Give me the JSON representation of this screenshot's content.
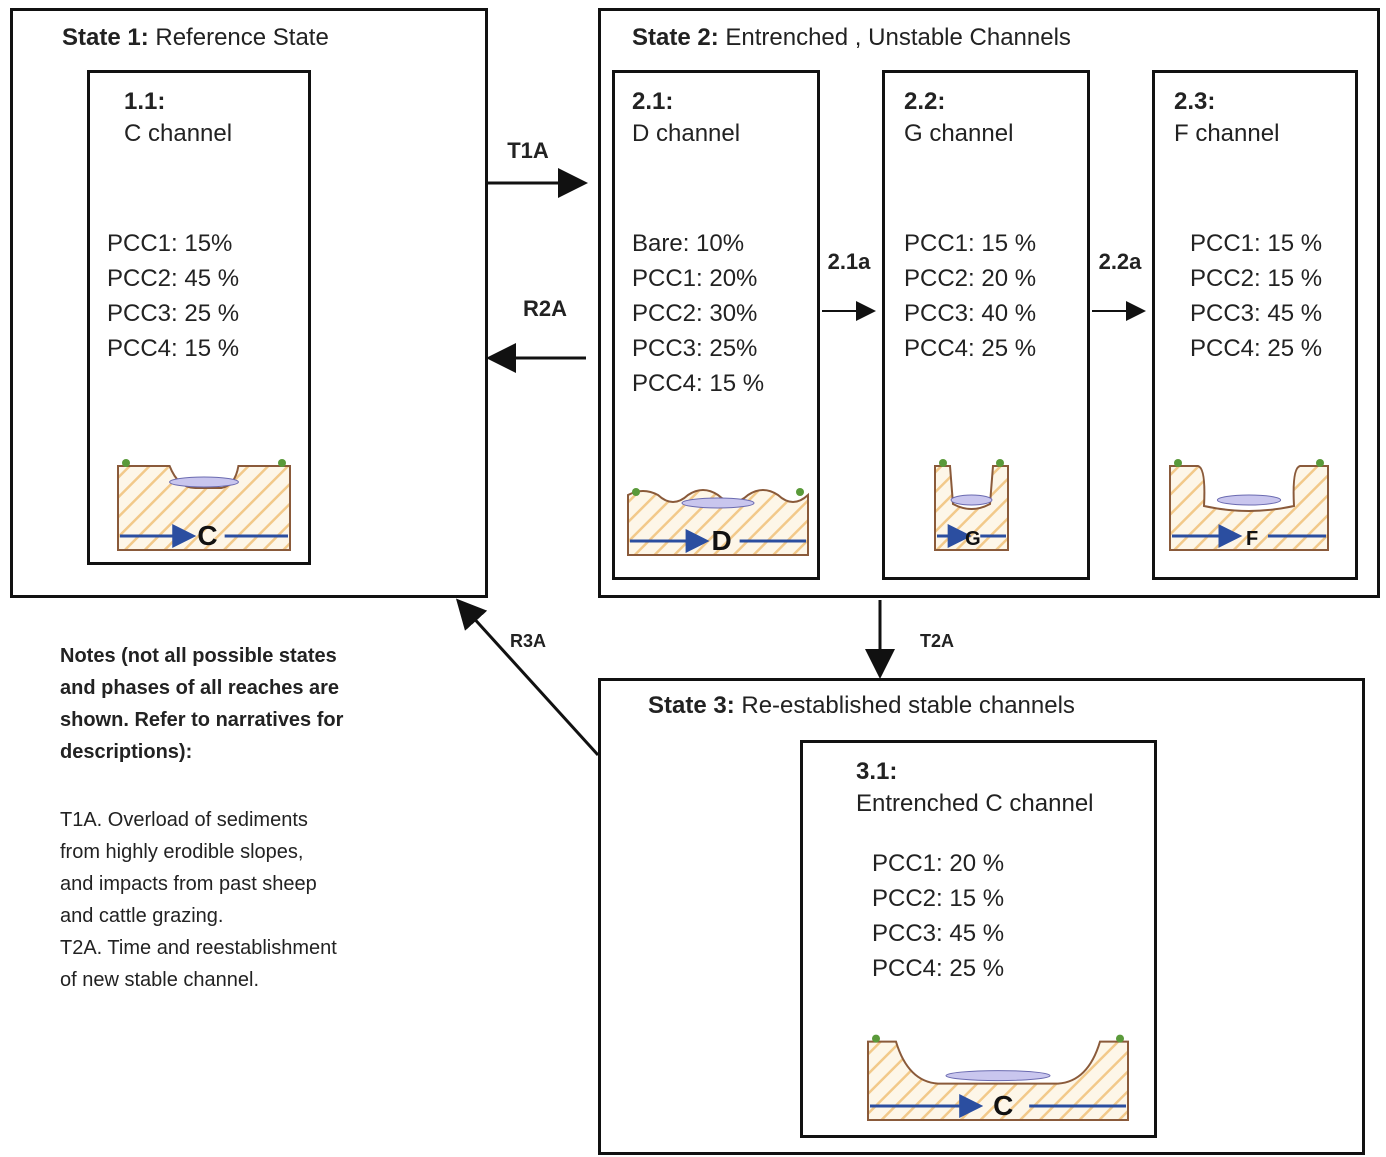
{
  "states": [
    {
      "label": "State 1:",
      "name": "Reference State",
      "phases": [
        {
          "id": "1.1:",
          "name": "C channel",
          "lines": [
            "PCC1: 15%",
            "PCC2: 45 %",
            "PCC3: 25 %",
            "PCC4: 15 %"
          ],
          "sketch_label": "C"
        }
      ]
    },
    {
      "label": "State 2:",
      "name": "Entrenched , Unstable Channels",
      "phases": [
        {
          "id": "2.1:",
          "name": "D channel",
          "lines": [
            "Bare: 10%",
            "PCC1: 20%",
            "PCC2: 30%",
            "PCC3: 25%",
            "PCC4: 15 %"
          ],
          "sketch_label": "D"
        },
        {
          "id": "2.2:",
          "name": "G channel",
          "lines": [
            "PCC1: 15 %",
            "PCC2: 20 %",
            "PCC3: 40 %",
            "PCC4: 25 %"
          ],
          "sketch_label": "G"
        },
        {
          "id": "2.3:",
          "name": "F channel",
          "lines": [
            "PCC1: 15 %",
            "PCC2: 15 %",
            "PCC3: 45 %",
            "PCC4: 25 %"
          ],
          "sketch_label": "F"
        }
      ]
    },
    {
      "label": "State 3:",
      "name": "Re-established stable channels",
      "phases": [
        {
          "id": "3.1:",
          "name": "Entrenched C channel",
          "lines": [
            "PCC1: 20 %",
            "PCC2: 15 %",
            "PCC3: 45 %",
            "PCC4: 25 %"
          ],
          "sketch_label": "C"
        }
      ]
    }
  ],
  "transitions": [
    {
      "label": "T1A"
    },
    {
      "label": "R2A"
    },
    {
      "label": "2.1a"
    },
    {
      "label": "2.2a"
    },
    {
      "label": "T2A"
    },
    {
      "label": "R3A"
    }
  ],
  "notes": {
    "heading": [
      "Notes (not all possible states",
      "and phases of all reaches are",
      "shown.  Refer to narratives for",
      "descriptions):"
    ],
    "items": [
      "T1A. Overload of sediments",
      "from highly erodible slopes,",
      "and impacts from past sheep",
      "and cattle grazing.",
      "T2A. Time and reestablishment",
      "of new stable channel."
    ]
  }
}
